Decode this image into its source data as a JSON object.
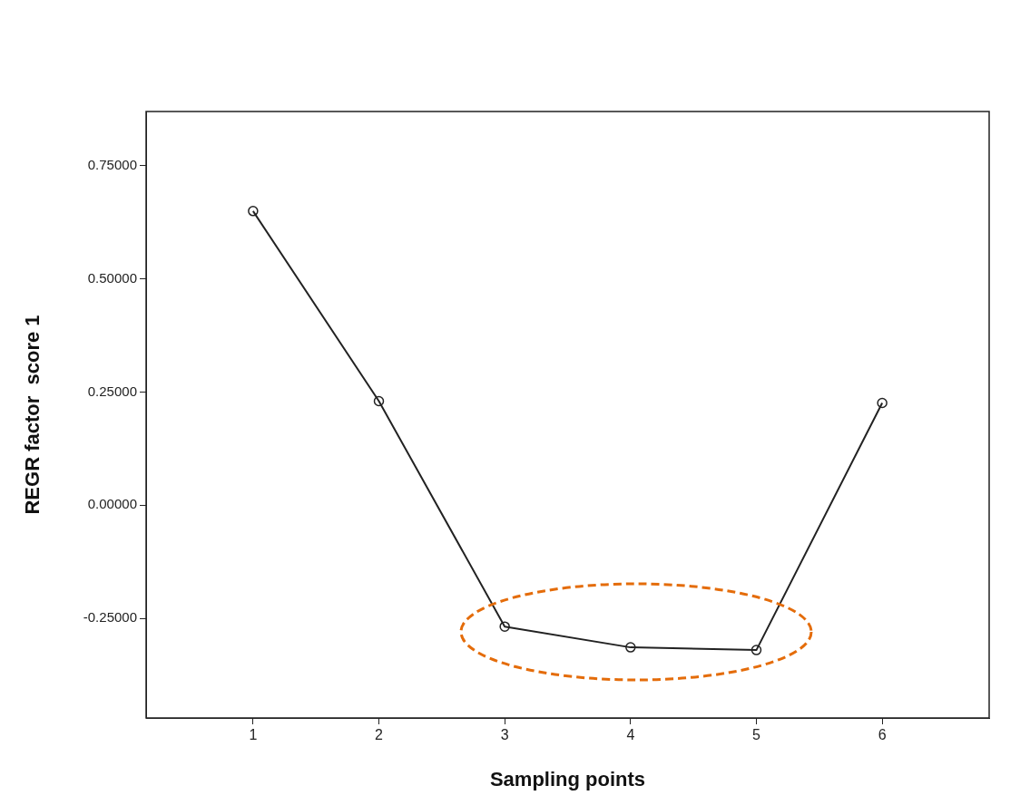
{
  "chart_data": {
    "type": "line",
    "xlabel": "Sampling points",
    "ylabel": "REGR factor  score 1",
    "x": [
      1,
      2,
      3,
      4,
      5,
      6
    ],
    "series": [
      {
        "color": "#222222",
        "values": [
          0.65,
          0.23,
          -0.268,
          -0.314,
          -0.32,
          0.226
        ]
      }
    ],
    "xlim": [
      0.15,
      6.85
    ],
    "xticks": [
      1,
      2,
      3,
      4,
      5,
      6
    ],
    "ylim": [
      -0.47,
      0.87
    ],
    "yticks": [
      {
        "value": -0.25,
        "label": "-0.25000"
      },
      {
        "value": 0,
        "label": "0.00000"
      },
      {
        "value": 0.25,
        "label": "0.25000"
      },
      {
        "value": 0.5,
        "label": "0.50000"
      },
      {
        "value": 0.75,
        "label": "0.75000"
      }
    ],
    "grid": false,
    "legend": false,
    "marker": "circle",
    "line_style": "solid"
  }
}
